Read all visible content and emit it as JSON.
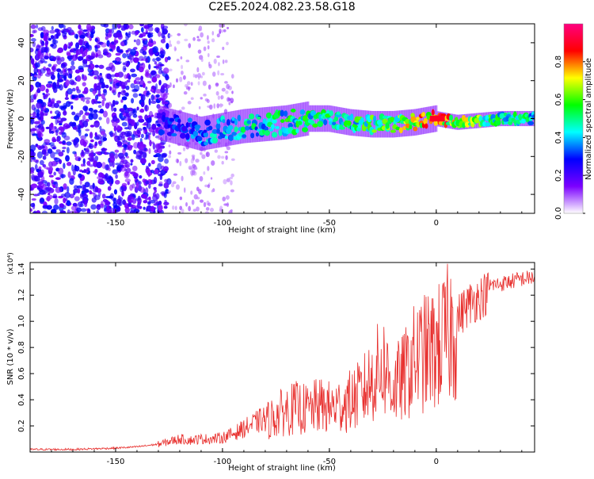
{
  "title": "C2E5.2024.082.23.58.G18",
  "chart_data": [
    {
      "type": "heatmap",
      "title": "C2E5.2024.082.23.58.G18",
      "xlabel": "Height of straight line (km)",
      "ylabel": "Frequency (Hz)",
      "xlim": [
        -190,
        46
      ],
      "ylim": [
        -50,
        50
      ],
      "x_ticks": [
        "-150",
        "-100",
        "-50",
        "0"
      ],
      "y_ticks": [
        "40",
        "20",
        "0",
        "-20",
        "-40"
      ],
      "colorbar": {
        "label": "Normalized spectral amplitude",
        "range": [
          0,
          1
        ],
        "ticks": [
          "0.0",
          "0.2",
          "0.4",
          "0.6",
          "0.8"
        ],
        "colors": [
          "#ffffff",
          "#7b00ff",
          "#0000ff",
          "#00ffff",
          "#00ff00",
          "#ffff00",
          "#ff0000",
          "#ff0080"
        ]
      },
      "ridge": [
        {
          "x": -130,
          "y": -2,
          "level": 0.3
        },
        {
          "x": -120,
          "y": -5,
          "level": 0.35
        },
        {
          "x": -110,
          "y": -8,
          "level": 0.4
        },
        {
          "x": -100,
          "y": -6,
          "level": 0.45
        },
        {
          "x": -90,
          "y": -4,
          "level": 0.5
        },
        {
          "x": -80,
          "y": -3,
          "level": 0.5
        },
        {
          "x": -70,
          "y": -2,
          "level": 0.55
        },
        {
          "x": -60,
          "y": 0,
          "level": 0.55
        },
        {
          "x": -50,
          "y": 0,
          "level": 0.55
        },
        {
          "x": -40,
          "y": -2,
          "level": 0.55
        },
        {
          "x": -30,
          "y": -3,
          "level": 0.6
        },
        {
          "x": -20,
          "y": -3,
          "level": 0.65
        },
        {
          "x": -10,
          "y": -2,
          "level": 0.75
        },
        {
          "x": 0,
          "y": 0,
          "level": 0.95
        },
        {
          "x": 5,
          "y": -1,
          "level": 0.85
        },
        {
          "x": 10,
          "y": -2,
          "level": 0.75
        },
        {
          "x": 20,
          "y": -1,
          "level": 0.65
        },
        {
          "x": 30,
          "y": 0,
          "level": 0.55
        },
        {
          "x": 46,
          "y": 0,
          "level": 0.5
        }
      ]
    },
    {
      "type": "line",
      "xlabel": "Height of straight line (km)",
      "ylabel": "SNR (10 * v/v)",
      "y_multiplier": "(x10⁴)",
      "xlim": [
        -190,
        46
      ],
      "ylim": [
        0,
        1.45
      ],
      "x_ticks": [
        "-150",
        "-100",
        "-50",
        "0"
      ],
      "y_ticks": [
        "0.2",
        "0.4",
        "0.6",
        "0.8",
        "1.0",
        "1.2",
        "1.4"
      ],
      "color": "#e8312f",
      "series": [
        {
          "x": [
            -190,
            -170,
            -150,
            -140,
            -130,
            -125,
            -120,
            -115,
            -110,
            -105,
            -100,
            -95,
            -90,
            -85,
            -80,
            -75,
            -70,
            -65,
            -60,
            -55,
            -50,
            -45,
            -40,
            -35,
            -30,
            -25,
            -20,
            -15,
            -10,
            -5,
            0,
            5,
            10,
            15,
            20,
            25,
            30,
            35,
            40,
            46
          ],
          "y": [
            0.02,
            0.02,
            0.03,
            0.04,
            0.06,
            0.08,
            0.1,
            0.09,
            0.1,
            0.1,
            0.11,
            0.14,
            0.18,
            0.22,
            0.26,
            0.31,
            0.36,
            0.38,
            0.36,
            0.4,
            0.38,
            0.4,
            0.44,
            0.5,
            0.62,
            0.75,
            0.55,
            0.65,
            0.8,
            0.85,
            0.88,
            1.0,
            1.1,
            1.2,
            1.25,
            1.3,
            1.31,
            1.33,
            1.35,
            1.36
          ]
        }
      ]
    }
  ]
}
